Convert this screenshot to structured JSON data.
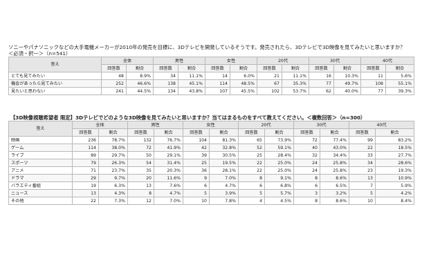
{
  "q1": {
    "question": "ソニーやパナソニックなどの大手電機メーカーが2010年の発売を目標に、3Dテレビを開発しているそうです。発売されたら、3Dテレビで3D映像を見てみたいと思いますか？",
    "condition": "＜必須・択一＞（n=541）",
    "answer_header": "答え",
    "groups": [
      "全体",
      "男性",
      "女性",
      "20代",
      "30代",
      "40代"
    ],
    "sub_headers": [
      "回答数",
      "割合"
    ],
    "rows": [
      {
        "label": "とても見てみたい",
        "cells": [
          "48",
          "8.9%",
          "34",
          "11.1%",
          "14",
          "6.0%",
          "21",
          "11.1%",
          "16",
          "10.3%",
          "11",
          "5.6%"
        ]
      },
      {
        "label": "機会があったら見てみたい",
        "cells": [
          "252",
          "46.6%",
          "138",
          "45.1%",
          "114",
          "48.5%",
          "67",
          "35.3%",
          "77",
          "49.7%",
          "108",
          "55.1%"
        ]
      },
      {
        "label": "見たいと思わない",
        "cells": [
          "241",
          "44.5%",
          "134",
          "43.8%",
          "107",
          "45.5%",
          "102",
          "53.7%",
          "62",
          "40.0%",
          "77",
          "39.3%"
        ]
      }
    ]
  },
  "q2": {
    "question": "【3D映像視聴希望者 限定】3Dテレビでどのような3D映像を見てみたいと思いますか？当てはまるものをすべて教えてください。＜複数回答＞（n=300）",
    "answer_header": "答え",
    "groups": [
      "全体",
      "男性",
      "女性",
      "20代",
      "30代",
      "40代"
    ],
    "sub_headers": [
      "回答数",
      "割合"
    ],
    "rows": [
      {
        "label": "映画",
        "cells": [
          "236",
          "78.7%",
          "132",
          "76.7%",
          "104",
          "81.3%",
          "65",
          "73.9%",
          "72",
          "77.4%",
          "99",
          "83.2%"
        ]
      },
      {
        "label": "ゲーム",
        "cells": [
          "114",
          "38.0%",
          "72",
          "41.9%",
          "42",
          "32.8%",
          "52",
          "59.1%",
          "40",
          "43.0%",
          "22",
          "18.5%"
        ]
      },
      {
        "label": "ライブ",
        "cells": [
          "89",
          "29.7%",
          "50",
          "29.1%",
          "39",
          "30.5%",
          "25",
          "28.4%",
          "32",
          "34.4%",
          "33",
          "27.7%"
        ]
      },
      {
        "label": "スポーツ",
        "cells": [
          "79",
          "26.3%",
          "54",
          "31.4%",
          "25",
          "19.5%",
          "22",
          "25.0%",
          "24",
          "25.8%",
          "34",
          "28.6%"
        ]
      },
      {
        "label": "アニメ",
        "cells": [
          "71",
          "23.7%",
          "35",
          "20.3%",
          "36",
          "28.1%",
          "22",
          "25.0%",
          "24",
          "25.8%",
          "23",
          "19.3%"
        ]
      },
      {
        "label": "ドラマ",
        "cells": [
          "29",
          "9.7%",
          "20",
          "11.6%",
          "9",
          "7.0%",
          "8",
          "9.1%",
          "8",
          "8.6%",
          "13",
          "10.9%"
        ]
      },
      {
        "label": "バラエティ番組",
        "cells": [
          "19",
          "6.3%",
          "13",
          "7.6%",
          "6",
          "4.7%",
          "6",
          "6.8%",
          "6",
          "6.5%",
          "7",
          "5.9%"
        ]
      },
      {
        "label": "ニュース",
        "cells": [
          "13",
          "4.3%",
          "8",
          "4.7%",
          "5",
          "3.9%",
          "5",
          "5.7%",
          "3",
          "3.2%",
          "5",
          "4.2%"
        ]
      },
      {
        "label": "その他",
        "cells": [
          "22",
          "7.3%",
          "12",
          "7.0%",
          "10",
          "7.8%",
          "4",
          "4.5%",
          "8",
          "8.6%",
          "10",
          "8.4%"
        ]
      }
    ]
  }
}
